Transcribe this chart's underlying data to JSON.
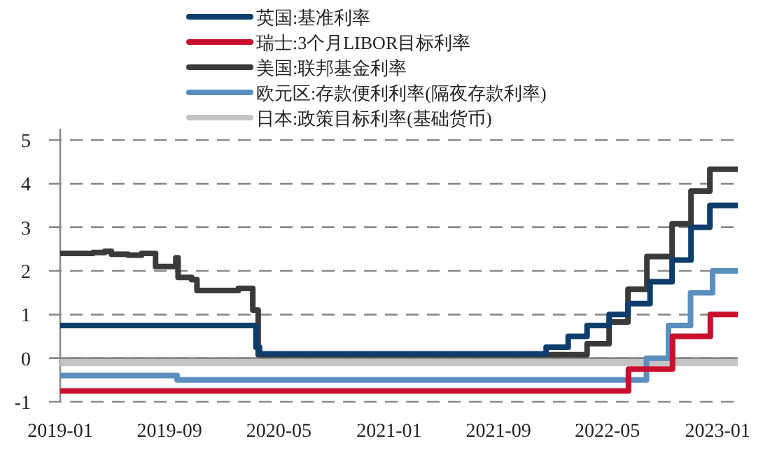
{
  "chart_data": {
    "type": "step",
    "legend": "top",
    "grid": "y",
    "line_style": "solid",
    "xlim": [
      "2019-01-01",
      "2023-02-15"
    ],
    "xticks": [
      "2019-01",
      "2019-09",
      "2020-05",
      "2021-01",
      "2021-09",
      "2022-05",
      "2023-01"
    ],
    "ylim": [
      -1,
      5
    ],
    "yticks": [
      -1,
      0,
      1,
      2,
      3,
      4,
      5
    ],
    "series": [
      {
        "name": "英国:基准利率",
        "color": "#0d3d6b",
        "x": [
          "2019-01-01",
          "2020-03-11",
          "2020-03-19",
          "2021-12-16",
          "2022-02-03",
          "2022-03-17",
          "2022-05-05",
          "2022-06-16",
          "2022-08-04",
          "2022-09-22",
          "2022-11-03",
          "2022-12-15",
          "2023-02-15"
        ],
        "values": [
          0.75,
          0.25,
          0.1,
          0.25,
          0.5,
          0.75,
          1.0,
          1.25,
          1.75,
          2.25,
          3.0,
          3.5,
          3.5
        ]
      },
      {
        "name": "瑞士:3个月LIBOR目标利率",
        "color": "#c8102e",
        "x": [
          "2019-01-01",
          "2022-06-17",
          "2022-09-23",
          "2022-12-16",
          "2023-02-15"
        ],
        "values": [
          -0.75,
          -0.25,
          0.5,
          1.0,
          1.0
        ]
      },
      {
        "name": "美国:联邦基金利率",
        "color": "#3a3a3a",
        "x": [
          "2019-01-01",
          "2019-03-15",
          "2019-04-10",
          "2019-04-25",
          "2019-06-01",
          "2019-07-01",
          "2019-08-01",
          "2019-09-15",
          "2019-09-20",
          "2019-10-20",
          "2019-11-01",
          "2020-02-01",
          "2020-03-04",
          "2020-03-16",
          "2022-03-17",
          "2022-05-05",
          "2022-06-16",
          "2022-07-28",
          "2022-09-22",
          "2022-11-03",
          "2022-12-15",
          "2023-02-15"
        ],
        "values": [
          2.4,
          2.42,
          2.45,
          2.38,
          2.36,
          2.4,
          2.1,
          2.3,
          1.85,
          1.8,
          1.55,
          1.6,
          1.1,
          0.08,
          0.33,
          0.83,
          1.58,
          2.33,
          3.08,
          3.83,
          4.33,
          4.33
        ]
      },
      {
        "name": "欧元区:存款便利利率(隔夜存款利率)",
        "color": "#5a8fc0",
        "x": [
          "2019-01-01",
          "2019-09-18",
          "2022-07-27",
          "2022-09-14",
          "2022-11-02",
          "2022-12-21",
          "2023-02-15"
        ],
        "values": [
          -0.4,
          -0.5,
          0,
          0.75,
          1.5,
          2.0,
          2.0
        ]
      },
      {
        "name": "日本:政策目标利率(基础货币)",
        "color": "#c4c4c4",
        "x": [
          "2019-01-01",
          "2023-02-15"
        ],
        "values": [
          -0.1,
          -0.1
        ]
      }
    ]
  }
}
